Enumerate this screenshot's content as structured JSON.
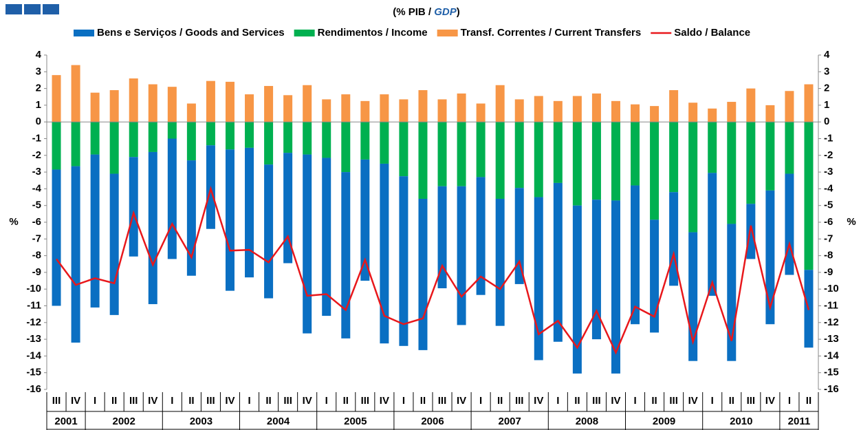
{
  "chart_data": {
    "type": "bar",
    "title_parts": [
      "(% PIB / ",
      "GDP",
      ")"
    ],
    "ylabel": "%",
    "y2label": "%",
    "categories": [
      "III",
      "IV",
      "I",
      "II",
      "III",
      "IV",
      "I",
      "II",
      "III",
      "IV",
      "I",
      "II",
      "III",
      "IV",
      "I",
      "II",
      "III",
      "IV",
      "I",
      "II",
      "III",
      "IV",
      "I",
      "II",
      "III",
      "IV",
      "I",
      "II",
      "III",
      "IV",
      "I",
      "II",
      "III",
      "IV",
      "I",
      "II",
      "III",
      "IV",
      "I",
      "II"
    ],
    "years": [
      "2001",
      "2002",
      "2003",
      "2004",
      "2005",
      "2006",
      "2007",
      "2008",
      "2009",
      "2010",
      "2011"
    ],
    "series": [
      {
        "name": "Bens e Serviços / Goods and Services",
        "color": "#0a6fc2",
        "type": "bar",
        "values": [
          -8.15,
          -10.55,
          -9.15,
          -8.45,
          -5.95,
          -9.1,
          -7.2,
          -6.9,
          -5.0,
          -8.45,
          -7.75,
          -8.0,
          -6.6,
          -10.7,
          -9.45,
          -9.95,
          -7.25,
          -10.75,
          -10.15,
          -9.05,
          -6.1,
          -8.3,
          -7.05,
          -7.6,
          -5.75,
          -9.75,
          -9.5,
          -10.05,
          -8.35,
          -10.35,
          -8.3,
          -6.75,
          -5.6,
          -7.7,
          -7.35,
          -8.2,
          -3.3,
          -8.0,
          -6.05,
          -4.65
        ]
      },
      {
        "name": "Rendimentos / Income",
        "color": "#00b050",
        "type": "bar",
        "values": [
          -2.85,
          -2.65,
          -1.95,
          -3.1,
          -2.1,
          -1.8,
          -1.0,
          -2.3,
          -1.4,
          -1.65,
          -1.55,
          -2.55,
          -1.85,
          -1.95,
          -2.15,
          -3.0,
          -2.25,
          -2.5,
          -3.25,
          -4.6,
          -3.85,
          -3.85,
          -3.3,
          -4.6,
          -3.95,
          -4.5,
          -3.65,
          -5.0,
          -4.65,
          -4.7,
          -3.8,
          -5.85,
          -4.2,
          -6.6,
          -3.05,
          -6.1,
          -4.9,
          -4.1,
          -3.1,
          -8.85
        ]
      },
      {
        "name": "Transf. Correntes / Current Transfers",
        "color": "#f79646",
        "type": "bar",
        "values": [
          2.8,
          3.4,
          1.75,
          1.9,
          2.6,
          2.25,
          2.1,
          1.1,
          2.45,
          2.4,
          1.65,
          2.15,
          1.6,
          2.2,
          1.35,
          1.65,
          1.25,
          1.65,
          1.35,
          1.9,
          1.35,
          1.7,
          1.1,
          2.2,
          1.35,
          1.55,
          1.25,
          1.55,
          1.7,
          1.25,
          1.05,
          0.95,
          1.9,
          1.15,
          0.8,
          1.2,
          2.0,
          1.0,
          1.85,
          2.25
        ]
      },
      {
        "name": "Saldo / Balance",
        "color": "#e8171b",
        "type": "line",
        "values": [
          -8.2,
          -9.75,
          -9.35,
          -9.65,
          -5.45,
          -8.55,
          -6.1,
          -8.1,
          -4.0,
          -7.7,
          -7.65,
          -8.4,
          -6.85,
          -10.4,
          -10.3,
          -11.25,
          -8.25,
          -11.6,
          -12.1,
          -11.75,
          -8.6,
          -10.45,
          -9.25,
          -10.0,
          -8.35,
          -12.7,
          -11.9,
          -13.5,
          -11.3,
          -13.8,
          -11.05,
          -11.65,
          -7.9,
          -13.15,
          -9.6,
          -13.1,
          -6.2,
          -11.1,
          -7.3,
          -11.25
        ]
      }
    ],
    "ylim": [
      -16,
      4
    ],
    "yticks": [
      4,
      3,
      2,
      1,
      0,
      -1,
      -2,
      -3,
      -4,
      -5,
      -6,
      -7,
      -8,
      -9,
      -10,
      -11,
      -12,
      -13,
      -14,
      -15,
      -16
    ],
    "y2lim": [
      -16,
      4
    ],
    "y2ticks": [
      4,
      3,
      2,
      1,
      0,
      -1,
      -2,
      -3,
      -4,
      -5,
      -6,
      -7,
      -8,
      -9,
      -10,
      -11,
      -12,
      -13,
      -14,
      -15,
      -16
    ]
  }
}
